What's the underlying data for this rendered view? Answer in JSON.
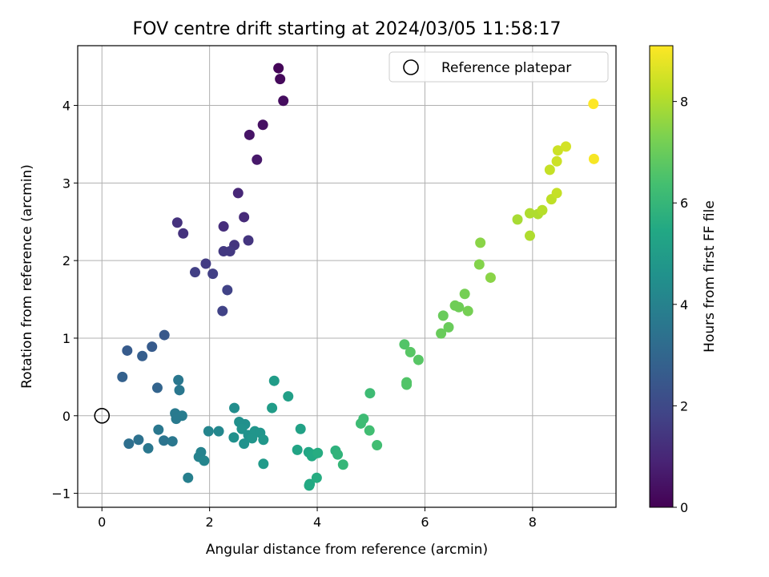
{
  "chart_data": {
    "type": "scatter",
    "title": "FOV centre drift starting at 2024/03/05 11:58:17",
    "xlabel": "Angular distance from reference (arcmin)",
    "ylabel": "Rotation from reference (arcmin)",
    "xlim": [
      -0.45,
      9.55
    ],
    "ylim": [
      -1.18,
      4.77
    ],
    "xticks": [
      0,
      2,
      4,
      6,
      8
    ],
    "yticks": [
      -1,
      0,
      1,
      2,
      3,
      4
    ],
    "grid": true,
    "legend": {
      "position": "top-right",
      "entries": [
        {
          "label": "Reference platepar",
          "marker": "open-circle"
        }
      ]
    },
    "reference_point": {
      "x": 0,
      "y": 0
    },
    "colorbar": {
      "label": "Hours from first FF file",
      "range": [
        0,
        9.1
      ],
      "ticks": [
        0,
        2,
        4,
        6,
        8
      ],
      "colormap": "viridis"
    },
    "points": [
      {
        "x": 3.28,
        "y": 4.48,
        "h": 0.1
      },
      {
        "x": 3.31,
        "y": 4.34,
        "h": 0.2
      },
      {
        "x": 3.37,
        "y": 4.06,
        "h": 0.3
      },
      {
        "x": 2.99,
        "y": 3.75,
        "h": 0.4
      },
      {
        "x": 2.74,
        "y": 3.62,
        "h": 0.5
      },
      {
        "x": 2.88,
        "y": 3.3,
        "h": 0.6
      },
      {
        "x": 2.53,
        "y": 2.87,
        "h": 1.0
      },
      {
        "x": 2.64,
        "y": 2.56,
        "h": 1.1
      },
      {
        "x": 2.26,
        "y": 2.44,
        "h": 1.2
      },
      {
        "x": 1.4,
        "y": 2.49,
        "h": 1.3
      },
      {
        "x": 1.51,
        "y": 2.35,
        "h": 1.3
      },
      {
        "x": 2.72,
        "y": 2.26,
        "h": 1.4
      },
      {
        "x": 2.46,
        "y": 2.2,
        "h": 1.4
      },
      {
        "x": 2.26,
        "y": 2.12,
        "h": 1.5
      },
      {
        "x": 2.38,
        "y": 2.12,
        "h": 1.5
      },
      {
        "x": 1.93,
        "y": 1.96,
        "h": 1.6
      },
      {
        "x": 1.73,
        "y": 1.85,
        "h": 1.7
      },
      {
        "x": 2.06,
        "y": 1.83,
        "h": 1.7
      },
      {
        "x": 2.33,
        "y": 1.62,
        "h": 1.8
      },
      {
        "x": 2.24,
        "y": 1.35,
        "h": 1.8
      },
      {
        "x": 1.16,
        "y": 1.04,
        "h": 2.5
      },
      {
        "x": 0.93,
        "y": 0.89,
        "h": 2.6
      },
      {
        "x": 0.47,
        "y": 0.84,
        "h": 2.6
      },
      {
        "x": 0.75,
        "y": 0.77,
        "h": 2.7
      },
      {
        "x": 0.38,
        "y": 0.5,
        "h": 2.8
      },
      {
        "x": 1.03,
        "y": 0.36,
        "h": 2.9
      },
      {
        "x": 1.42,
        "y": 0.46,
        "h": 3.6
      },
      {
        "x": 1.44,
        "y": 0.33,
        "h": 3.6
      },
      {
        "x": 1.36,
        "y": 0.03,
        "h": 3.7
      },
      {
        "x": 1.49,
        "y": 0.0,
        "h": 3.8
      },
      {
        "x": 1.38,
        "y": -0.04,
        "h": 3.7
      },
      {
        "x": 1.05,
        "y": -0.18,
        "h": 3.6
      },
      {
        "x": 1.15,
        "y": -0.32,
        "h": 3.5
      },
      {
        "x": 0.68,
        "y": -0.31,
        "h": 3.4
      },
      {
        "x": 0.5,
        "y": -0.36,
        "h": 3.3
      },
      {
        "x": 1.31,
        "y": -0.33,
        "h": 3.6
      },
      {
        "x": 0.86,
        "y": -0.42,
        "h": 3.6
      },
      {
        "x": 1.98,
        "y": -0.2,
        "h": 4.1
      },
      {
        "x": 2.17,
        "y": -0.2,
        "h": 4.2
      },
      {
        "x": 1.84,
        "y": -0.47,
        "h": 4.0
      },
      {
        "x": 1.8,
        "y": -0.53,
        "h": 4.0
      },
      {
        "x": 1.9,
        "y": -0.58,
        "h": 4.1
      },
      {
        "x": 1.6,
        "y": -0.8,
        "h": 3.9
      },
      {
        "x": 2.46,
        "y": 0.1,
        "h": 4.4
      },
      {
        "x": 2.55,
        "y": -0.08,
        "h": 4.5
      },
      {
        "x": 2.66,
        "y": -0.11,
        "h": 4.5
      },
      {
        "x": 2.6,
        "y": -0.17,
        "h": 4.6
      },
      {
        "x": 2.45,
        "y": -0.28,
        "h": 4.5
      },
      {
        "x": 2.72,
        "y": -0.25,
        "h": 4.6
      },
      {
        "x": 2.64,
        "y": -0.36,
        "h": 4.6
      },
      {
        "x": 2.84,
        "y": -0.2,
        "h": 4.7
      },
      {
        "x": 2.94,
        "y": -0.22,
        "h": 4.7
      },
      {
        "x": 2.79,
        "y": -0.29,
        "h": 4.7
      },
      {
        "x": 3.0,
        "y": -0.31,
        "h": 4.8
      },
      {
        "x": 3.0,
        "y": -0.62,
        "h": 4.9
      },
      {
        "x": 3.2,
        "y": 0.45,
        "h": 5.0
      },
      {
        "x": 3.46,
        "y": 0.25,
        "h": 5.1
      },
      {
        "x": 3.16,
        "y": 0.1,
        "h": 5.0
      },
      {
        "x": 3.69,
        "y": -0.17,
        "h": 5.2
      },
      {
        "x": 3.63,
        "y": -0.44,
        "h": 5.3
      },
      {
        "x": 3.84,
        "y": -0.47,
        "h": 5.4
      },
      {
        "x": 3.93,
        "y": -0.5,
        "h": 5.5
      },
      {
        "x": 3.9,
        "y": -0.52,
        "h": 5.5
      },
      {
        "x": 4.01,
        "y": -0.48,
        "h": 5.6
      },
      {
        "x": 3.86,
        "y": -0.88,
        "h": 5.5
      },
      {
        "x": 3.85,
        "y": -0.9,
        "h": 5.5
      },
      {
        "x": 3.99,
        "y": -0.8,
        "h": 5.6
      },
      {
        "x": 4.34,
        "y": -0.45,
        "h": 5.8
      },
      {
        "x": 4.38,
        "y": -0.5,
        "h": 5.9
      },
      {
        "x": 4.48,
        "y": -0.63,
        "h": 6.0
      },
      {
        "x": 4.98,
        "y": 0.29,
        "h": 6.2
      },
      {
        "x": 4.86,
        "y": -0.04,
        "h": 6.2
      },
      {
        "x": 4.81,
        "y": -0.1,
        "h": 6.2
      },
      {
        "x": 4.97,
        "y": -0.19,
        "h": 6.3
      },
      {
        "x": 5.11,
        "y": -0.38,
        "h": 6.3
      },
      {
        "x": 5.62,
        "y": 0.92,
        "h": 6.6
      },
      {
        "x": 5.73,
        "y": 0.82,
        "h": 6.7
      },
      {
        "x": 5.88,
        "y": 0.72,
        "h": 6.7
      },
      {
        "x": 5.66,
        "y": 0.43,
        "h": 6.6
      },
      {
        "x": 5.66,
        "y": 0.4,
        "h": 6.6
      },
      {
        "x": 6.34,
        "y": 1.29,
        "h": 7.0
      },
      {
        "x": 6.44,
        "y": 1.14,
        "h": 7.0
      },
      {
        "x": 6.3,
        "y": 1.06,
        "h": 7.0
      },
      {
        "x": 6.56,
        "y": 1.42,
        "h": 7.1
      },
      {
        "x": 6.63,
        "y": 1.4,
        "h": 7.1
      },
      {
        "x": 6.74,
        "y": 1.57,
        "h": 7.2
      },
      {
        "x": 6.8,
        "y": 1.35,
        "h": 7.2
      },
      {
        "x": 7.03,
        "y": 2.23,
        "h": 7.5
      },
      {
        "x": 7.01,
        "y": 1.95,
        "h": 7.4
      },
      {
        "x": 7.22,
        "y": 1.78,
        "h": 7.5
      },
      {
        "x": 7.72,
        "y": 2.53,
        "h": 7.9
      },
      {
        "x": 7.95,
        "y": 2.61,
        "h": 8.0
      },
      {
        "x": 8.1,
        "y": 2.6,
        "h": 8.0
      },
      {
        "x": 8.18,
        "y": 2.65,
        "h": 8.1
      },
      {
        "x": 7.95,
        "y": 2.32,
        "h": 8.0
      },
      {
        "x": 8.35,
        "y": 2.79,
        "h": 8.2
      },
      {
        "x": 8.45,
        "y": 2.87,
        "h": 8.3
      },
      {
        "x": 8.32,
        "y": 3.17,
        "h": 8.3
      },
      {
        "x": 8.45,
        "y": 3.28,
        "h": 8.4
      },
      {
        "x": 8.47,
        "y": 3.42,
        "h": 8.4
      },
      {
        "x": 8.62,
        "y": 3.47,
        "h": 8.5
      },
      {
        "x": 9.13,
        "y": 4.02,
        "h": 9.1
      },
      {
        "x": 9.14,
        "y": 3.31,
        "h": 9.0
      }
    ]
  }
}
